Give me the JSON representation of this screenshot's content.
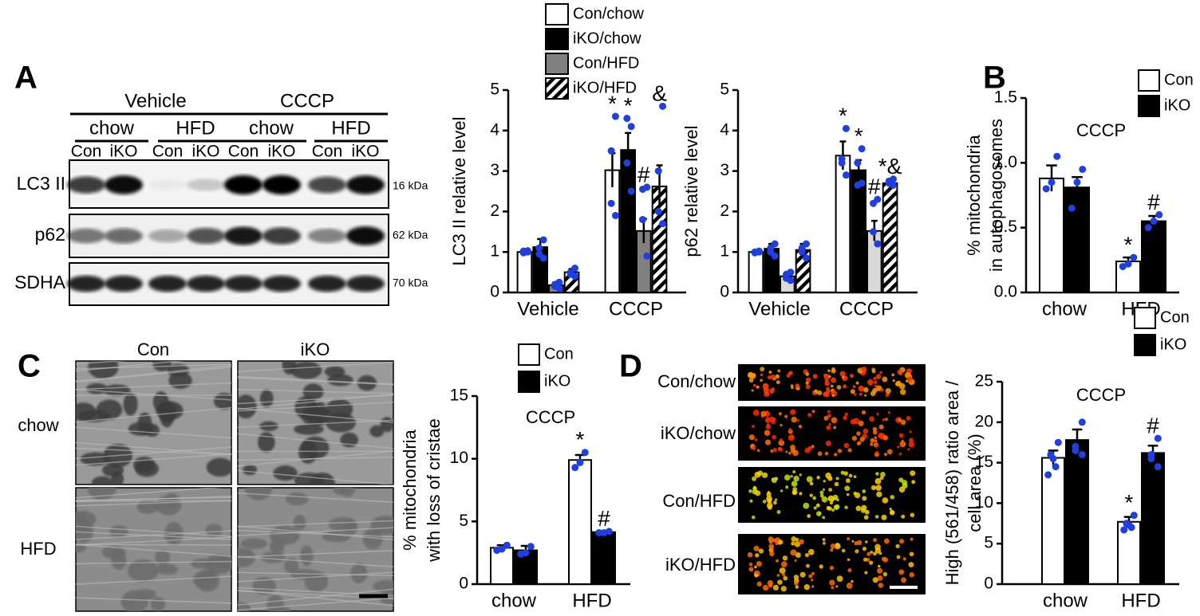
{
  "panel_labels": [
    "A",
    "B",
    "C",
    "D"
  ],
  "blot": {
    "treatments": [
      "Vehicle",
      "CCCP"
    ],
    "diets": [
      "chow",
      "HFD",
      "chow",
      "HFD"
    ],
    "lanes": [
      "Con",
      "iKO",
      "Con",
      "iKO",
      "Con",
      "iKO",
      "Con",
      "iKO"
    ],
    "rows": [
      "LC3 II",
      "p62",
      "SDHA"
    ],
    "sizes": [
      "16 kDa",
      "62 kDa",
      "70 kDa"
    ]
  },
  "em": {
    "columns": [
      "Con",
      "iKO"
    ],
    "rows": [
      "chow",
      "HFD"
    ]
  },
  "imaging": {
    "rows": [
      "Con/chow",
      "iKO/chow",
      "Con/HFD",
      "iKO/HFD"
    ]
  },
  "chart_data": [
    {
      "type": "bar",
      "ylabel": [
        "LC3 II relative level"
      ],
      "categories": [
        "Vehicle",
        "CCCP"
      ],
      "ylim": [
        0,
        5
      ],
      "yticks": [
        0,
        1,
        2,
        3,
        4,
        5
      ],
      "series": [
        {
          "name": "Con/chow",
          "color": "#ffffff",
          "values": [
            1.0,
            3.02
          ],
          "errors": [
            0.05,
            0.42
          ],
          "points": [
            [
              1.0,
              0.98,
              1.02,
              1.03
            ],
            [
              4.35,
              3.5,
              2.2,
              1.9
            ]
          ],
          "annotations": [
            null,
            "*"
          ]
        },
        {
          "name": "iKO/chow",
          "color": "#000000",
          "values": [
            1.12,
            3.52
          ],
          "errors": [
            0.2,
            0.42
          ],
          "points": [
            [
              1.3,
              1.1,
              0.95,
              0.85
            ],
            [
              4.1,
              4.3,
              3.2,
              2.5
            ]
          ],
          "annotations": [
            null,
            "*"
          ]
        },
        {
          "name": "Con/HFD",
          "color": "#808080",
          "values": [
            0.18,
            1.52
          ],
          "errors": [
            0.05,
            0.3
          ],
          "points": [
            [
              0.25,
              0.2,
              0.15,
              0.1
            ],
            [
              2.6,
              2.55,
              1.8,
              0.9
            ]
          ],
          "annotations": [
            null,
            "#"
          ]
        },
        {
          "name": "iKO/HFD",
          "color": "#ffffff",
          "pattern": "hatch",
          "values": [
            0.5,
            2.62
          ],
          "errors": [
            0.08,
            0.52
          ],
          "points": [
            [
              0.6,
              0.5,
              0.45,
              0.4
            ],
            [
              4.6,
              3.0,
              2.0,
              1.7
            ]
          ],
          "annotations": [
            null,
            "&"
          ]
        }
      ]
    },
    {
      "type": "bar",
      "ylabel": [
        "p62 relative level"
      ],
      "categories": [
        "Vehicle",
        "CCCP"
      ],
      "ylim": [
        0,
        5
      ],
      "yticks": [
        0,
        1,
        2,
        3,
        4,
        5
      ],
      "series": [
        {
          "color": "#ffffff",
          "values": [
            1.0,
            3.38
          ],
          "errors": [
            0.04,
            0.35
          ],
          "points": [
            [
              1.0,
              1.0,
              0.98,
              1.02
            ],
            [
              4.05,
              3.3,
              3.2,
              2.9
            ]
          ],
          "annotations": [
            null,
            "*"
          ]
        },
        {
          "color": "#000000",
          "values": [
            1.08,
            3.02
          ],
          "errors": [
            0.12,
            0.25
          ],
          "points": [
            [
              1.2,
              1.1,
              1.0,
              0.9
            ],
            [
              3.55,
              3.2,
              2.65,
              2.7
            ]
          ],
          "annotations": [
            null,
            "*"
          ]
        },
        {
          "color": "#d9d9d9",
          "values": [
            0.4,
            1.52
          ],
          "errors": [
            0.08,
            0.25
          ],
          "points": [
            [
              0.5,
              0.45,
              0.35,
              0.3
            ],
            [
              2.3,
              2.2,
              1.5,
              1.2
            ]
          ],
          "annotations": [
            null,
            "#"
          ]
        },
        {
          "color": "#ffffff",
          "pattern": "hatch",
          "values": [
            1.05,
            2.7
          ],
          "errors": [
            0.15,
            0.06
          ],
          "points": [
            [
              1.2,
              1.1,
              1.0,
              0.85
            ],
            [
              2.8,
              2.75,
              2.7,
              2.65
            ]
          ],
          "annotations": [
            null,
            "*&"
          ]
        }
      ]
    },
    {
      "type": "bar",
      "title": "CCCP",
      "ylabel": [
        "% mitochondria",
        "in autophagosomes"
      ],
      "categories": [
        "chow",
        "HFD"
      ],
      "ylim": [
        0,
        1.5
      ],
      "yticks": [
        {
          "value": 0,
          "label": "0.0"
        },
        {
          "value": 0.5,
          "label": "0.5"
        },
        {
          "value": 1,
          "label": "1.0"
        },
        {
          "value": 1.5,
          "label": "1.5"
        }
      ],
      "series": [
        {
          "name": "Con",
          "color": "#ffffff",
          "values": [
            0.88,
            0.24
          ],
          "errors": [
            0.1,
            0.03
          ],
          "points": [
            [
              1.05,
              0.85,
              0.8
            ],
            [
              0.27,
              0.22,
              0.2
            ]
          ],
          "annotations": [
            null,
            "*"
          ]
        },
        {
          "name": "iKO",
          "color": "#000000",
          "values": [
            0.81,
            0.55
          ],
          "errors": [
            0.08,
            0.04
          ],
          "points": [
            [
              0.95,
              0.85,
              0.65
            ],
            [
              0.6,
              0.55,
              0.5
            ]
          ],
          "annotations": [
            null,
            "#"
          ]
        }
      ]
    },
    {
      "type": "bar",
      "title": "CCCP",
      "ylabel": [
        "% mitochondria",
        "with loss of cristae"
      ],
      "categories": [
        "chow",
        "HFD"
      ],
      "ylim": [
        0,
        15
      ],
      "yticks": [
        0,
        5,
        10,
        15
      ],
      "series": [
        {
          "name": "Con",
          "color": "#ffffff",
          "values": [
            2.9,
            9.9
          ],
          "errors": [
            0.2,
            0.4
          ],
          "points": [
            [
              3.1,
              2.8,
              2.7
            ],
            [
              10.5,
              9.7,
              9.3
            ]
          ],
          "annotations": [
            null,
            "*"
          ]
        },
        {
          "name": "iKO",
          "color": "#000000",
          "values": [
            2.7,
            4.15
          ],
          "errors": [
            0.35,
            0.08
          ],
          "points": [
            [
              3.0,
              2.5,
              2.4
            ],
            [
              4.2,
              4.1,
              4.1
            ]
          ],
          "annotations": [
            null,
            "#"
          ]
        }
      ]
    },
    {
      "type": "bar",
      "title": "CCCP",
      "ylabel": [
        "High (561/458) ratio area /",
        "cell area (%)"
      ],
      "categories": [
        "chow",
        "HFD"
      ],
      "ylim": [
        0,
        25
      ],
      "yticks": [
        0,
        5,
        10,
        15,
        20,
        25
      ],
      "series": [
        {
          "name": "Con",
          "color": "#ffffff",
          "values": [
            15.6,
            7.7
          ],
          "errors": [
            0.9,
            0.6
          ],
          "points": [
            [
              17.5,
              16.0,
              15.5,
              14.5,
              13.5
            ],
            [
              8.5,
              7.5,
              7.3,
              7.0,
              6.7
            ]
          ],
          "annotations": [
            null,
            "*"
          ]
        },
        {
          "name": "iKO",
          "color": "#000000",
          "values": [
            17.8,
            16.2
          ],
          "errors": [
            1.3,
            0.9
          ],
          "points": [
            [
              20,
              17,
              16.5,
              16
            ],
            [
              18,
              16,
              15.5,
              14.5
            ]
          ],
          "annotations": [
            null,
            "#"
          ]
        }
      ]
    }
  ]
}
